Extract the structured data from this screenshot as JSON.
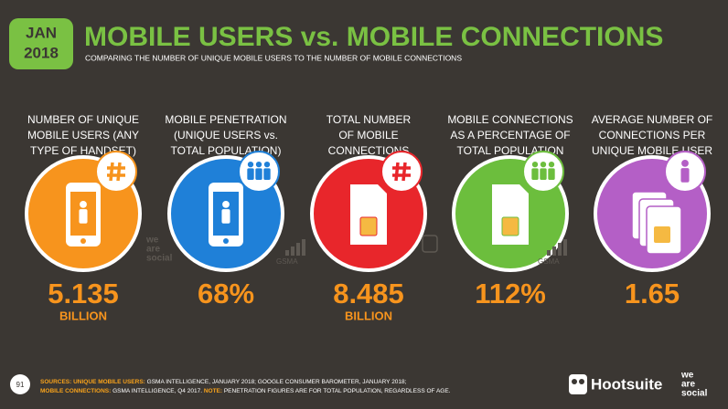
{
  "header": {
    "badge_month": "JAN",
    "badge_year": "2018",
    "title": "MOBILE USERS vs. MOBILE CONNECTIONS",
    "subtitle": "COMPARING THE NUMBER OF UNIQUE MOBILE USERS TO THE NUMBER OF MOBILE CONNECTIONS"
  },
  "stats": [
    {
      "label": [
        "NUMBER OF UNIQUE",
        "MOBILE USERS (ANY",
        "TYPE OF HANDSET)"
      ],
      "value": "5.135",
      "unit": "BILLION"
    },
    {
      "label": [
        "MOBILE PENETRATION",
        "(UNIQUE USERS vs.",
        "TOTAL POPULATION)"
      ],
      "value": "68%"
    },
    {
      "label": [
        "TOTAL NUMBER",
        "OF MOBILE",
        "CONNECTIONS"
      ],
      "value": "8.485",
      "unit": "BILLION"
    },
    {
      "label": [
        "MOBILE CONNECTIONS",
        "AS A PERCENTAGE OF",
        "TOTAL POPULATION"
      ],
      "value": "112%"
    },
    {
      "label": [
        "AVERAGE NUMBER OF",
        "CONNECTIONS PER",
        "UNIQUE MOBILE USER"
      ],
      "value": "1.65"
    }
  ],
  "watermarks": {
    "we_are_social": [
      "we",
      "are",
      "social"
    ],
    "gsma_1": "GSMA",
    "gsma_2": "GSMA"
  },
  "footer": {
    "page": "91",
    "sources_line_1": [
      {
        "text": "SOURCES: UNIQUE MOBILE USERS: ",
        "highlight": true
      },
      {
        "text": "GSMA INTELLIGENCE, JANUARY 2018; GOOGLE CONSUMER BAROMETER, JANUARY 2018;",
        "highlight": false
      }
    ],
    "sources_line_2": [
      {
        "text": "MOBILE CONNECTIONS: ",
        "highlight": true
      },
      {
        "text": "GSMA INTELLIGENCE, Q4 2017. ",
        "highlight": false
      },
      {
        "text": "NOTE: ",
        "highlight": true
      },
      {
        "text": "PENETRATION FIGURES ARE FOR TOTAL POPULATION, REGARDLESS OF AGE.",
        "highlight": false
      }
    ],
    "brand": "Hootsuite",
    "brand_2": [
      "we",
      "are",
      "social"
    ]
  }
}
